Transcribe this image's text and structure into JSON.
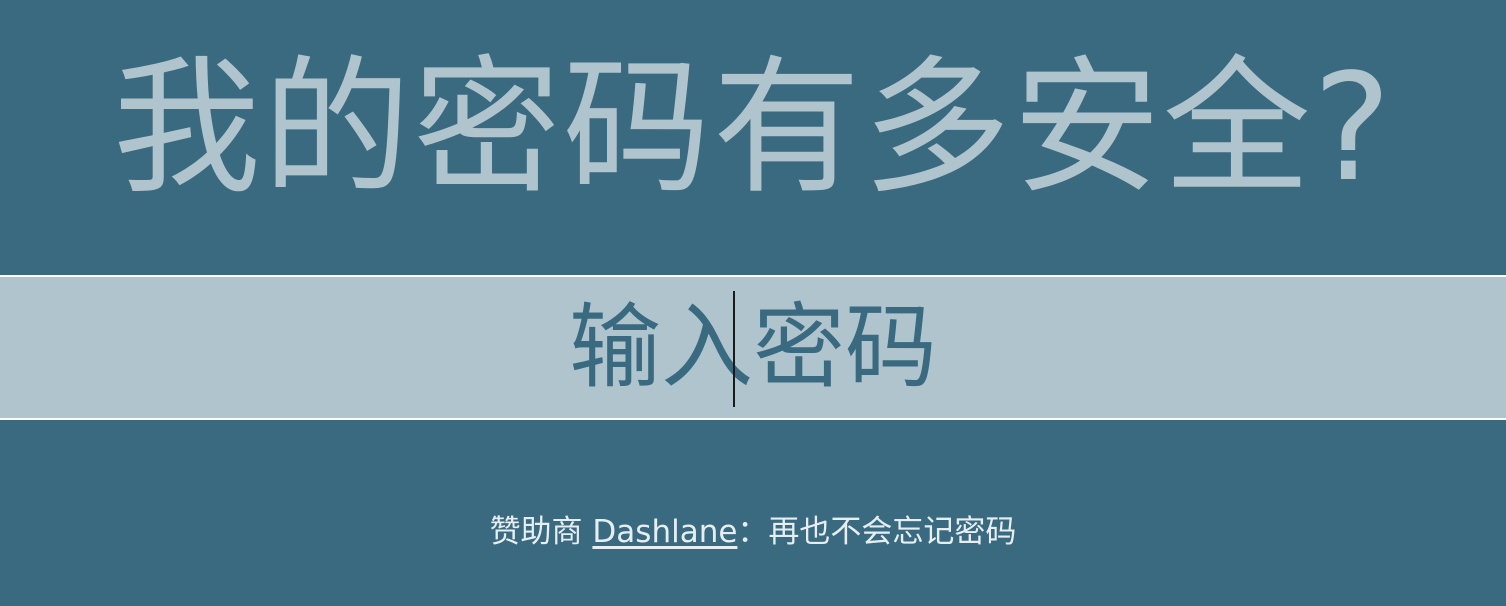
{
  "header": {
    "title": "我的密码有多安全?"
  },
  "password_field": {
    "value": "",
    "placeholder": "输入密码"
  },
  "footer": {
    "prefix": "赞助商 ",
    "sponsor_link": "Dashlane",
    "suffix": "：再也不会忘记密码"
  },
  "colors": {
    "background": "#3a6a80",
    "band": "#b0c4ce",
    "heading_text": "#b0c4ce",
    "footer_text": "#e6eef2"
  }
}
